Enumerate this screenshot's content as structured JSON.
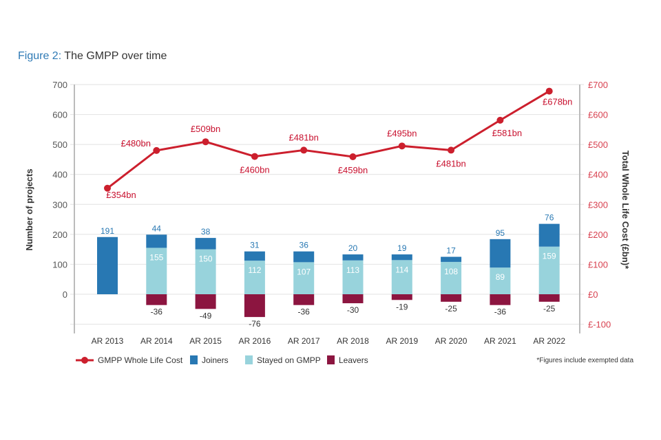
{
  "title": {
    "figure_label": "Figure 2:",
    "text": " The GMPP over time"
  },
  "chart_data": {
    "type": "bar+line",
    "categories": [
      "AR 2013",
      "AR 2014",
      "AR 2015",
      "AR 2016",
      "AR 2017",
      "AR 2018",
      "AR 2019",
      "AR 2020",
      "AR 2021",
      "AR 2022"
    ],
    "series": [
      {
        "name": "Joiners",
        "type": "stacked-bar",
        "color": "#2878b3",
        "values": [
          191,
          44,
          38,
          31,
          36,
          20,
          19,
          17,
          95,
          76
        ]
      },
      {
        "name": "Stayed on GMPP",
        "type": "stacked-bar",
        "color": "#98d3dc",
        "values": [
          0,
          155,
          150,
          112,
          107,
          113,
          114,
          108,
          89,
          159
        ]
      },
      {
        "name": "Leavers",
        "type": "stacked-bar",
        "color": "#8c1540",
        "values": [
          0,
          -36,
          -49,
          -76,
          -36,
          -30,
          -19,
          -25,
          -36,
          -25
        ]
      },
      {
        "name": "GMPP Whole Life Cost",
        "type": "line",
        "axis": "right",
        "color": "#cc1f2d",
        "values": [
          354,
          480,
          509,
          460,
          481,
          459,
          495,
          481,
          581,
          678
        ],
        "labels": [
          "£354bn",
          "£480bn",
          "£509bn",
          "£460bn",
          "£481bn",
          "£459bn",
          "£495bn",
          "£481bn",
          "£581bn",
          "£678bn"
        ]
      }
    ],
    "ylabel": "Number of projects",
    "y2label": "Total Whole Life Cost (£bn)*",
    "ylim": [
      -100,
      700
    ],
    "yticks": [
      "700",
      "600",
      "500",
      "400",
      "300",
      "200",
      "100",
      "0"
    ],
    "y2ticks": [
      "£700",
      "£600",
      "£500",
      "£400",
      "£300",
      "£200",
      "£100",
      "£0",
      "£-100"
    ],
    "grid": true,
    "legend_position": "bottom",
    "footnote": "*Figures include exempted data"
  }
}
